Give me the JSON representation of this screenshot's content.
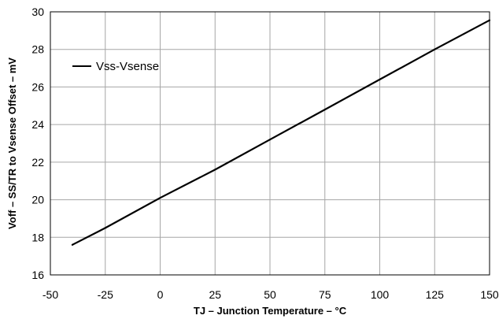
{
  "chart_data": {
    "type": "line",
    "title": "",
    "xlabel": "TJ – Junction Temperature – °C",
    "ylabel": "Voff – SS/TR to Vsense Offset – mV",
    "xlim": [
      -50,
      150
    ],
    "ylim": [
      16,
      30
    ],
    "xticks": [
      -50,
      -25,
      0,
      25,
      50,
      75,
      100,
      125,
      150
    ],
    "yticks": [
      16,
      18,
      20,
      22,
      24,
      26,
      28,
      30
    ],
    "xtick_labels": [
      "-50",
      "-25",
      "0",
      "25",
      "50",
      "75",
      "100",
      "125",
      "150"
    ],
    "ytick_labels": [
      "16",
      "18",
      "20",
      "22",
      "24",
      "26",
      "28",
      "30"
    ],
    "grid": true,
    "legend": {
      "position": "top-left"
    },
    "series": [
      {
        "name": "Vss-Vsense",
        "color": "#000000",
        "x": [
          -40,
          -25,
          0,
          25,
          50,
          75,
          100,
          125,
          150
        ],
        "y": [
          17.6,
          18.5,
          20.1,
          21.6,
          23.2,
          24.8,
          26.4,
          28.0,
          29.55
        ]
      }
    ]
  }
}
